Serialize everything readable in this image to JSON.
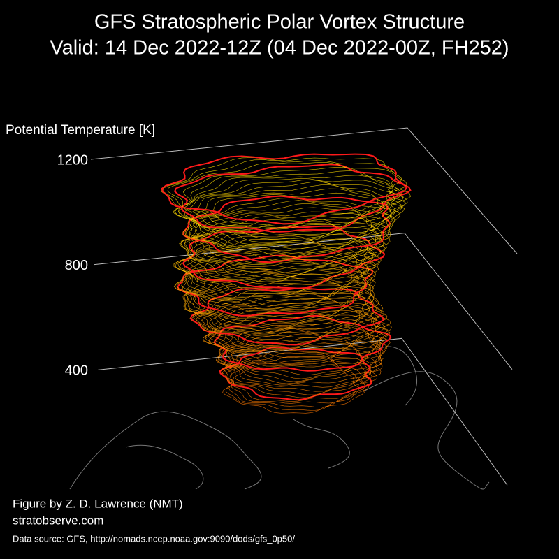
{
  "chart_data": {
    "type": "3d-contour",
    "title": "GFS Stratospheric Polar Vortex Structure",
    "subtitle": "Valid: 14 Dec 2022-12Z  (04 Dec 2022-00Z, FH252)",
    "zlabel": "Potential Temperature [K]",
    "zlim": [
      0,
      1200
    ],
    "zticks": [
      400,
      800,
      1200
    ],
    "grid": true
  },
  "credits": {
    "author": "Figure by Z. D. Lawrence (NMT)",
    "site": "stratobserve.com",
    "source": "Data source: GFS, http://nomads.ncep.noaa.gov:9090/dods/gfs_0p50/"
  }
}
